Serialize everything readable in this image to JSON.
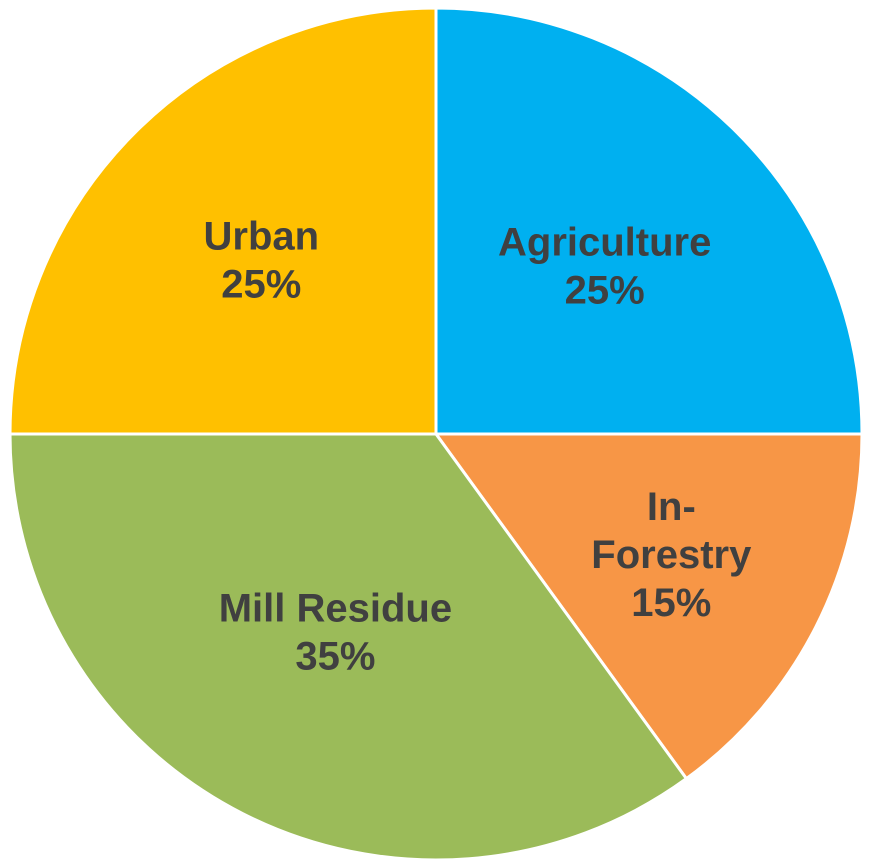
{
  "chart_data": {
    "type": "pie",
    "slices": [
      {
        "name": "Agriculture",
        "label_lines": [
          "Agriculture"
        ],
        "value": 25,
        "value_label": "25%",
        "color": "#00B0F0"
      },
      {
        "name": "In-Forestry",
        "label_lines": [
          "In-",
          "Forestry"
        ],
        "value": 15,
        "value_label": "15%",
        "color": "#F79646"
      },
      {
        "name": "Mill Residue",
        "label_lines": [
          "Mill Residue"
        ],
        "value": 35,
        "value_label": "35%",
        "color": "#9BBB59"
      },
      {
        "name": "Urban",
        "label_lines": [
          "Urban"
        ],
        "value": 25,
        "value_label": "25%",
        "color": "#FFC000"
      }
    ],
    "start_angle": "12 o'clock",
    "direction": "clockwise",
    "legend": "none",
    "label_color": "#404040"
  }
}
